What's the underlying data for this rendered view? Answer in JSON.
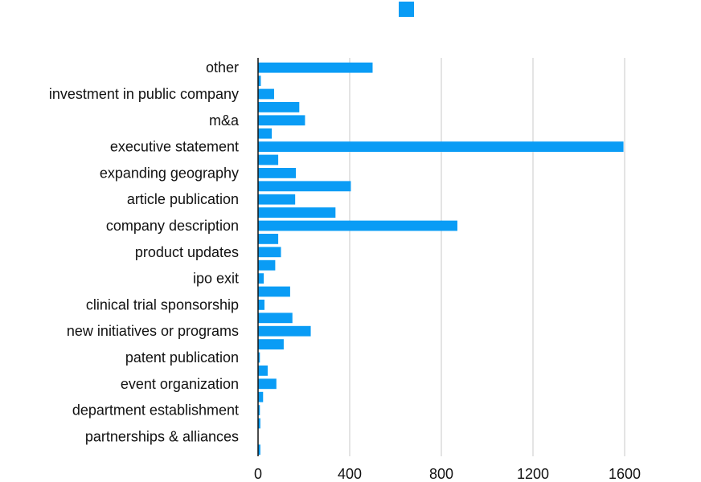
{
  "chart_data": {
    "type": "bar",
    "orientation": "horizontal",
    "title": "",
    "xlabel": "",
    "ylabel": "",
    "xlim": [
      0,
      1800
    ],
    "x_ticks": [
      0,
      400,
      800,
      1200,
      1600
    ],
    "grid": "vertical",
    "legend": {
      "position": "top-center",
      "entries": [
        ""
      ]
    },
    "colors": {
      "bar": "#0a9cf5",
      "grid": "#c8c8c8",
      "axis": "#111111"
    },
    "bars": [
      {
        "label": "other",
        "value": 500
      },
      {
        "label": "",
        "value": 12
      },
      {
        "label": "investment in public company",
        "value": 70
      },
      {
        "label": "",
        "value": 180
      },
      {
        "label": "m&a",
        "value": 205
      },
      {
        "label": "",
        "value": 60
      },
      {
        "label": "executive statement",
        "value": 1595
      },
      {
        "label": "",
        "value": 88
      },
      {
        "label": "expanding geography",
        "value": 165
      },
      {
        "label": "",
        "value": 405
      },
      {
        "label": "article publication",
        "value": 162
      },
      {
        "label": "",
        "value": 338
      },
      {
        "label": "company description",
        "value": 870
      },
      {
        "label": "",
        "value": 88
      },
      {
        "label": "product updates",
        "value": 100
      },
      {
        "label": "",
        "value": 75
      },
      {
        "label": "ipo exit",
        "value": 25
      },
      {
        "label": "",
        "value": 140
      },
      {
        "label": "clinical trial sponsorship",
        "value": 28
      },
      {
        "label": "",
        "value": 150
      },
      {
        "label": "new initiatives or programs",
        "value": 230
      },
      {
        "label": "",
        "value": 112
      },
      {
        "label": "patent publication",
        "value": 8
      },
      {
        "label": "",
        "value": 42
      },
      {
        "label": "event organization",
        "value": 80
      },
      {
        "label": "",
        "value": 22
      },
      {
        "label": "department establishment",
        "value": 8
      },
      {
        "label": "",
        "value": 10
      },
      {
        "label": "partnerships & alliances",
        "value": 0
      },
      {
        "label": "",
        "value": 10
      }
    ]
  }
}
